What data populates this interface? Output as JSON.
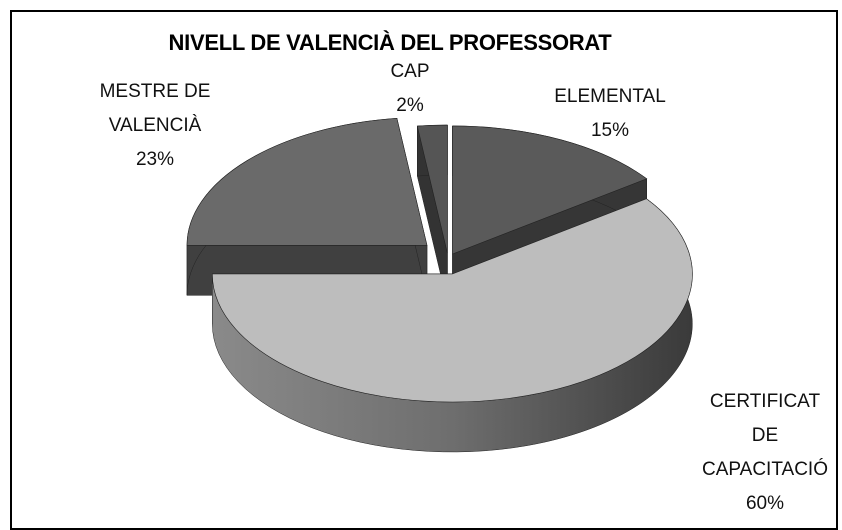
{
  "chart_data": {
    "type": "pie3d",
    "title": "NIVELL DE VALENCIÀ DEL PROFESSORAT",
    "categories": [
      "ELEMENTAL",
      "CERTIFICAT DE CAPACITACIÓ",
      "MESTRE DE VALENCIÀ",
      "CAP"
    ],
    "values": [
      15,
      60,
      23,
      2
    ],
    "value_labels": [
      "15%",
      "60%",
      "23%",
      "2%"
    ],
    "colors": [
      "#5a5a5a",
      "#bdbdbd",
      "#6a6a6a",
      "#555555"
    ]
  }
}
